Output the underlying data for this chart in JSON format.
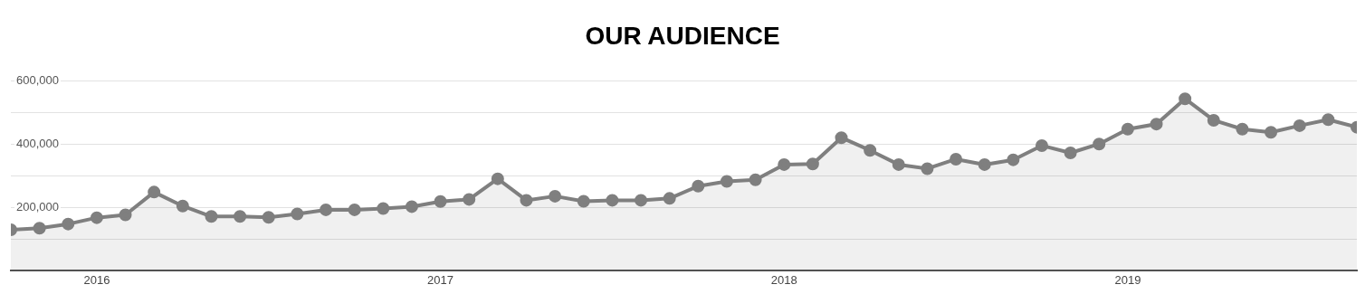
{
  "chart_data": {
    "type": "area",
    "title": "OUR AUDIENCE",
    "x": [
      "2015-10",
      "2015-11",
      "2015-12",
      "2016-01",
      "2016-02",
      "2016-03",
      "2016-04",
      "2016-05",
      "2016-06",
      "2016-07",
      "2016-08",
      "2016-09",
      "2016-10",
      "2016-11",
      "2016-12",
      "2017-01",
      "2017-02",
      "2017-03",
      "2017-04",
      "2017-05",
      "2017-06",
      "2017-07",
      "2017-08",
      "2017-09",
      "2017-10",
      "2017-11",
      "2017-12",
      "2018-01",
      "2018-02",
      "2018-03",
      "2018-04",
      "2018-05",
      "2018-06",
      "2018-07",
      "2018-08",
      "2018-09",
      "2018-10",
      "2018-11",
      "2018-12",
      "2019-01",
      "2019-02",
      "2019-03",
      "2019-04",
      "2019-05",
      "2019-06",
      "2019-07",
      "2019-08",
      "2019-09"
    ],
    "series": [
      {
        "color": "#7f7f7f",
        "values": [
          130000,
          135000,
          148000,
          168000,
          177000,
          249000,
          205000,
          172000,
          172000,
          169000,
          180000,
          193000,
          193000,
          197000,
          203000,
          219000,
          226000,
          291000,
          223000,
          236000,
          220000,
          223000,
          223000,
          229000,
          268000,
          283000,
          288000,
          336000,
          338000,
          421000,
          381000,
          336000,
          323000,
          353000,
          336000,
          351000,
          396000,
          373000,
          401000,
          448000,
          464000,
          544000,
          476000,
          448000,
          438000,
          459000,
          478000,
          454000
        ]
      }
    ],
    "xlim": [
      "2015-10",
      "2019-09"
    ],
    "xticks": [
      {
        "value": "2016-01",
        "label": "2016"
      },
      {
        "value": "2017-01",
        "label": "2017"
      },
      {
        "value": "2018-01",
        "label": "2018"
      },
      {
        "value": "2019-01",
        "label": "2019"
      }
    ],
    "ylim": [
      0,
      600000
    ],
    "yticks": [
      {
        "value": 100000,
        "label": null
      },
      {
        "value": 200000,
        "label": "200,000"
      },
      {
        "value": 300000,
        "label": null
      },
      {
        "value": 400000,
        "label": "400,000"
      },
      {
        "value": 500000,
        "label": null
      },
      {
        "value": 600000,
        "label": "600,000"
      }
    ],
    "grid": "y",
    "marker": "circle",
    "line_style": "solid"
  }
}
